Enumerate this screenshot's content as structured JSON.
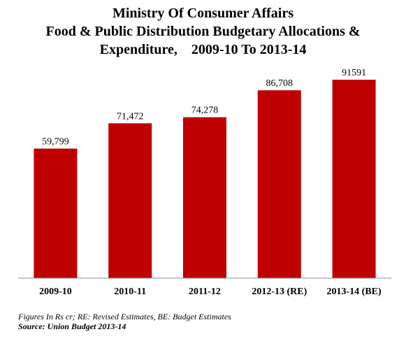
{
  "chart_data": {
    "type": "bar",
    "title_lines": [
      "Ministry Of Consumer Affairs",
      "Food & Public Distribution Budgetary Allocations &",
      "Expenditure,    2009-10 To 2013-14"
    ],
    "categories": [
      "2009-10",
      "2010-11",
      "2011-12",
      "2012-13 (RE)",
      "2013-14 (BE)"
    ],
    "values": [
      59799,
      71472,
      74278,
      86708,
      91591
    ],
    "data_labels": [
      "59,799",
      "71,472",
      "74,278",
      "86,708",
      "91591"
    ],
    "ylim": [
      0,
      100000
    ],
    "bar_color": "#C00000",
    "grid": false,
    "legend": "none"
  },
  "notes": {
    "figures": "Figures In Rs cr; RE: Revised Estimates, BE: Budget Estimates",
    "source": "Source: Union Budget 2013-14"
  }
}
